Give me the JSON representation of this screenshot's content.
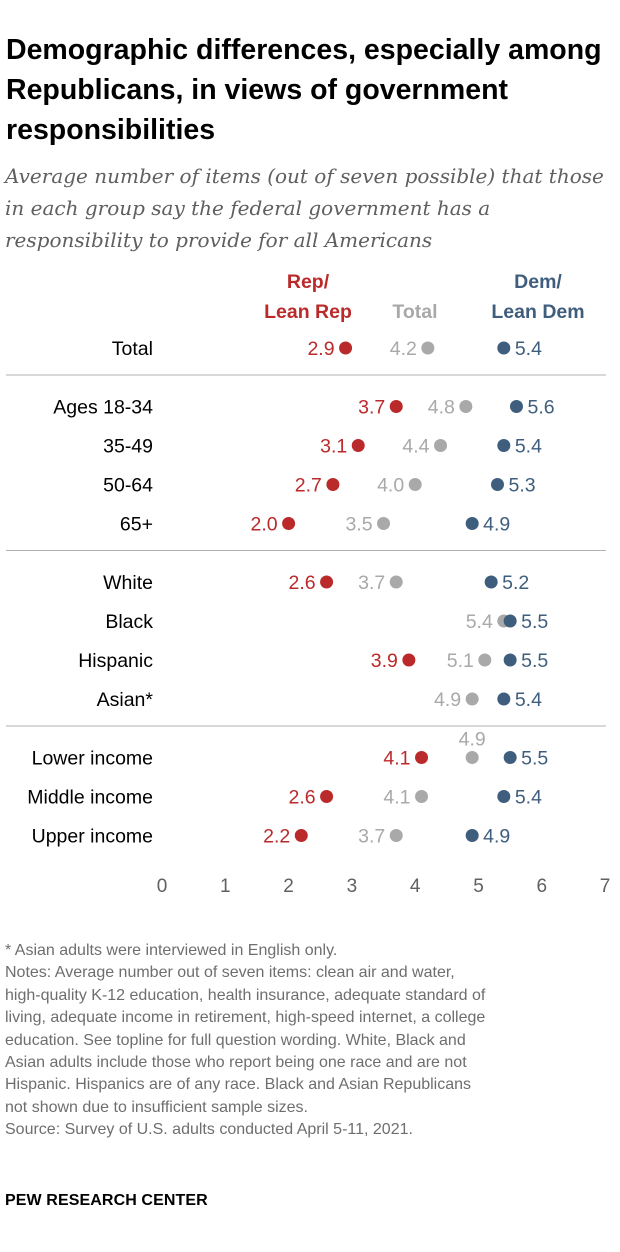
{
  "title": "Demographic differences, especially among Republicans, in views of government responsibilities",
  "subtitle": "Average number of items (out of seven possible) that those in each group say the federal government has a responsibility to provide for all Americans",
  "colors": {
    "rep": "#bb2a2a",
    "total": "#a9a9a9",
    "dem": "#3f5e7e",
    "divider": "#b0b0b0",
    "label": "#000000"
  },
  "chart_data": {
    "type": "dot",
    "series": [
      {
        "key": "rep",
        "name": "Rep/ Lean Rep",
        "name_lines": [
          "Rep/",
          "Lean Rep"
        ]
      },
      {
        "key": "total",
        "name": "Total",
        "name_lines": [
          "Total"
        ]
      },
      {
        "key": "dem",
        "name": "Dem/ Lean Dem",
        "name_lines": [
          "Dem/",
          "Lean Dem"
        ]
      }
    ],
    "groups": [
      {
        "rows": [
          {
            "label": "Total",
            "rep": 2.9,
            "total": 4.2,
            "dem": 5.4
          }
        ]
      },
      {
        "rows": [
          {
            "label": "Ages 18-34",
            "rep": 3.7,
            "total": 4.8,
            "dem": 5.6
          },
          {
            "label": "35-49",
            "rep": 3.1,
            "total": 4.4,
            "dem": 5.4
          },
          {
            "label": "50-64",
            "rep": 2.7,
            "total": 4.0,
            "dem": 5.3
          },
          {
            "label": "65+",
            "rep": 2.0,
            "total": 3.5,
            "dem": 4.9
          }
        ]
      },
      {
        "rows": [
          {
            "label": "White",
            "rep": 2.6,
            "total": 3.7,
            "dem": 5.2
          },
          {
            "label": "Black",
            "rep": null,
            "total": 5.4,
            "dem": 5.5
          },
          {
            "label": "Hispanic",
            "rep": 3.9,
            "total": 5.1,
            "dem": 5.5
          },
          {
            "label": "Asian*",
            "rep": null,
            "total": 4.9,
            "dem": 5.4
          }
        ]
      },
      {
        "rows": [
          {
            "label": "Lower income",
            "rep": 4.1,
            "total": 4.9,
            "dem": 5.5
          },
          {
            "label": "Middle income",
            "rep": 2.6,
            "total": 4.1,
            "dem": 5.4
          },
          {
            "label": "Upper income",
            "rep": 2.2,
            "total": 3.7,
            "dem": 4.9
          }
        ]
      }
    ],
    "x_ticks": [
      "0",
      "1",
      "2",
      "3",
      "4",
      "5",
      "6",
      "7"
    ],
    "xlim": [
      0,
      7
    ]
  },
  "notes": [
    "* Asian adults were interviewed in English only.",
    "Notes: Average number out of seven items: clean air and water,",
    "high-quality K-12 education, health insurance, adequate standard of",
    "living, adequate income in retirement, high-speed internet, a college",
    "education. See topline for full question wording. White, Black and",
    "Asian adults include those who report being one race and are not",
    "Hispanic. Hispanics are of any race. Black and Asian Republicans",
    "not shown due to insufficient sample sizes.",
    "Source: Survey of U.S. adults conducted April 5-11, 2021."
  ],
  "source_label": "PEW RESEARCH CENTER"
}
